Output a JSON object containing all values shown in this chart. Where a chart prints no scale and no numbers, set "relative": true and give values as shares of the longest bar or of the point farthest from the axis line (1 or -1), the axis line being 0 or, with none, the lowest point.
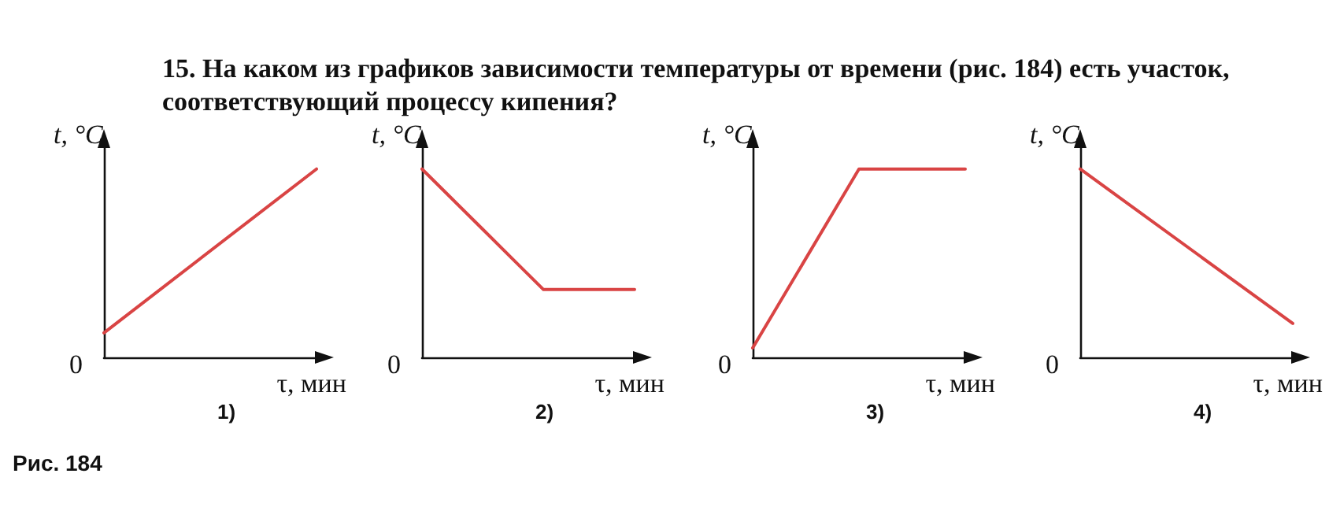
{
  "chart_data": [
    {
      "type": "line",
      "title": "15. На каком из графиков зависимости температуры от времени (рис. 184) есть участок, соответствующий процессу кипения?",
      "xlabel": "τ, мин",
      "ylabel": "t, °C",
      "relative": true,
      "categories": [
        null,
        null
      ],
      "series": [
        {
          "color": "#d94444",
          "values": [
            0.13,
            1
          ]
        }
      ],
      "annotations": [
        "0",
        "1)",
        "Рис. 184"
      ]
    },
    {
      "type": "line",
      "xlabel": "τ, мин",
      "ylabel": "t, °C",
      "relative": true,
      "categories": [
        null,
        null,
        null,
        null,
        null,
        null,
        null,
        null
      ],
      "series": [
        {
          "color": "#d94444",
          "values": [
            1,
            0.84,
            0.68,
            0.52,
            0.36,
            0.36,
            0.36,
            0.36
          ]
        }
      ],
      "annotations": [
        "0",
        "2)"
      ]
    },
    {
      "type": "line",
      "xlabel": "τ, мин",
      "ylabel": "t, °C",
      "relative": true,
      "categories": [
        null,
        null,
        null,
        null,
        null
      ],
      "series": [
        {
          "color": "#d94444",
          "values": [
            0.05,
            0.525,
            1,
            1,
            1
          ]
        }
      ],
      "annotations": [
        "0",
        "3)"
      ]
    },
    {
      "type": "line",
      "xlabel": "τ, мин",
      "ylabel": "t, °C",
      "relative": true,
      "categories": [
        null,
        null
      ],
      "series": [
        {
          "color": "#d94444",
          "values": [
            1,
            0.18
          ]
        }
      ],
      "annotations": [
        "0",
        "4)"
      ]
    }
  ]
}
